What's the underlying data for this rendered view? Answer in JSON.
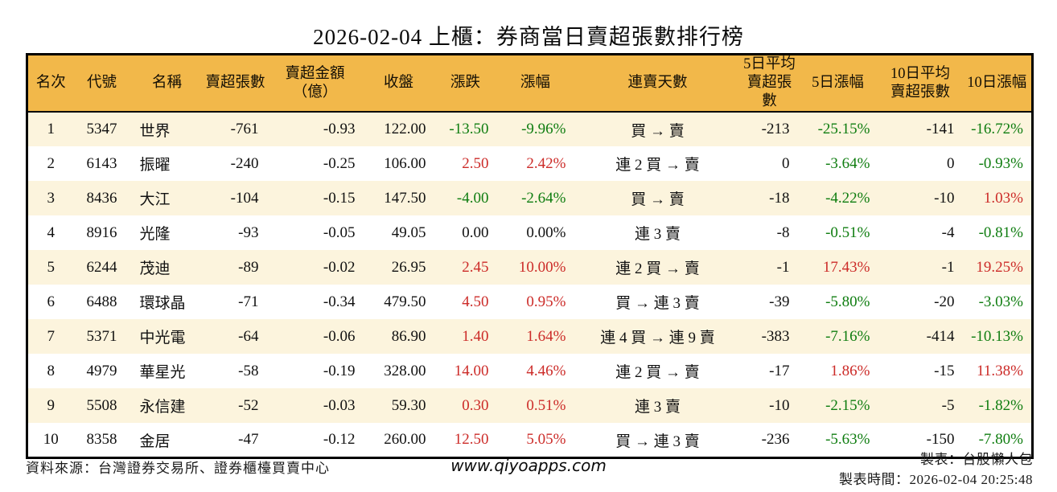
{
  "page": {
    "title": "2026-02-04 上櫃：券商當日賣超張數排行榜"
  },
  "table": {
    "column_keys": [
      "rank",
      "code",
      "name",
      "net_sell",
      "net_sell_amount",
      "close",
      "change",
      "change_pct",
      "streak",
      "avg5_net_sell",
      "pct_5d",
      "avg10_net_sell",
      "pct_10d"
    ],
    "headers": [
      "名次",
      "代號",
      "名稱",
      "賣超張數",
      "賣超金額\n（億）",
      "收盤",
      "漲跌",
      "漲幅",
      "連賣天數",
      "5日平均\n賣超張數",
      "5日漲幅",
      "10日平均\n賣超張數",
      "10日漲幅"
    ],
    "alignments": [
      "center",
      "center",
      "left",
      "right",
      "right",
      "right",
      "right",
      "right",
      "center",
      "right",
      "right",
      "right",
      "right"
    ],
    "colored_columns": [
      "change",
      "change_pct",
      "pct_5d",
      "pct_10d"
    ],
    "rows": [
      [
        "1",
        "5347",
        "世界",
        "-761",
        "-0.93",
        "122.00",
        "-13.50",
        "-9.96%",
        "買 → 賣",
        "-213",
        "-25.15%",
        "-141",
        "-16.72%"
      ],
      [
        "2",
        "6143",
        "振曜",
        "-240",
        "-0.25",
        "106.00",
        "2.50",
        "2.42%",
        "連 2 買 → 賣",
        "0",
        "-3.64%",
        "0",
        "-0.93%"
      ],
      [
        "3",
        "8436",
        "大江",
        "-104",
        "-0.15",
        "147.50",
        "-4.00",
        "-2.64%",
        "買 → 賣",
        "-18",
        "-4.22%",
        "-10",
        "1.03%"
      ],
      [
        "4",
        "8916",
        "光隆",
        "-93",
        "-0.05",
        "49.05",
        "0.00",
        "0.00%",
        "連 3 賣",
        "-8",
        "-0.51%",
        "-4",
        "-0.81%"
      ],
      [
        "5",
        "6244",
        "茂迪",
        "-89",
        "-0.02",
        "26.95",
        "2.45",
        "10.00%",
        "連 2 買 → 賣",
        "-1",
        "17.43%",
        "-1",
        "19.25%"
      ],
      [
        "6",
        "6488",
        "環球晶",
        "-71",
        "-0.34",
        "479.50",
        "4.50",
        "0.95%",
        "買 → 連 3 賣",
        "-39",
        "-5.80%",
        "-20",
        "-3.03%"
      ],
      [
        "7",
        "5371",
        "中光電",
        "-64",
        "-0.06",
        "86.90",
        "1.40",
        "1.64%",
        "連 4 買 → 連 9 賣",
        "-383",
        "-7.16%",
        "-414",
        "-10.13%"
      ],
      [
        "8",
        "4979",
        "華星光",
        "-58",
        "-0.19",
        "328.00",
        "14.00",
        "4.46%",
        "連 2 買 → 賣",
        "-17",
        "1.86%",
        "-15",
        "11.38%"
      ],
      [
        "9",
        "5508",
        "永信建",
        "-52",
        "-0.03",
        "59.30",
        "0.30",
        "0.51%",
        "連 3 賣",
        "-10",
        "-2.15%",
        "-5",
        "-1.82%"
      ],
      [
        "10",
        "8358",
        "金居",
        "-47",
        "-0.12",
        "260.00",
        "12.50",
        "5.05%",
        "買 → 連 3 賣",
        "-236",
        "-5.63%",
        "-150",
        "-7.80%"
      ]
    ]
  },
  "footer": {
    "source": "資料來源：台灣證券交易所、證券櫃檯買賣中心",
    "website": "www.qiyoapps.com",
    "maker": "製表：台股懶人包",
    "made_time": "製表時間：2026-02-04 20:25:48"
  },
  "colors": {
    "positive_red": "#cc2b28",
    "negative_green": "#0f7d10",
    "neutral_black": "#111111",
    "header_bg": "#f2b84a",
    "row_stripe_bg": "#fcf4dd",
    "border": "#000000"
  }
}
